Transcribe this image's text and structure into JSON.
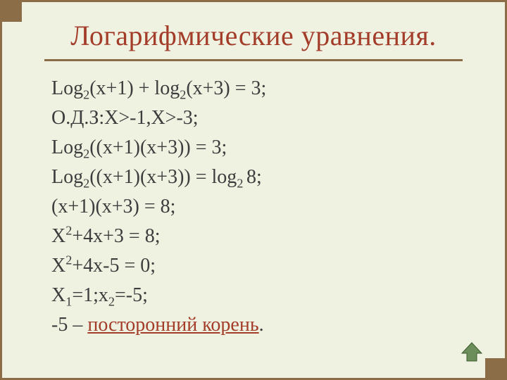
{
  "slide": {
    "title": "Логарифмические уравнения.",
    "lines": [
      {
        "html": "Log<sub>2</sub>(x+1) + log<sub>2</sub>(x+3) = 3;"
      },
      {
        "html": "О.Д.З:X&gt;-1,X&gt;-3;"
      },
      {
        "html": "Log<sub>2</sub>((x+1)(x+3)) = 3;"
      },
      {
        "html": "Log<sub>2</sub>((x+1)(x+3)) = log<sub>2 </sub>8;"
      },
      {
        "html": "(x+1)(x+3) = 8;"
      },
      {
        "html": "X<sup>2</sup>+4x+3 = 8;"
      },
      {
        "html": "X<sup>2</sup>+4x-5 = 0;"
      },
      {
        "html": "X<sub>1</sub>=1;x<sub>2</sub>=-5;"
      },
      {
        "html": "-5 – <span class=\"underline-red\">посторонний корень</span>."
      }
    ]
  },
  "style": {
    "background_color": "#eff1e1",
    "border_color": "#8b6d47",
    "corner_color": "#8b6d47",
    "title_color": "#a33d2a",
    "title_fontsize": 40,
    "body_fontsize": 28,
    "body_color": "#3d3d3d",
    "nav_icon_color": "#5a7a4a"
  },
  "nav": {
    "icon_name": "home-up-icon"
  }
}
